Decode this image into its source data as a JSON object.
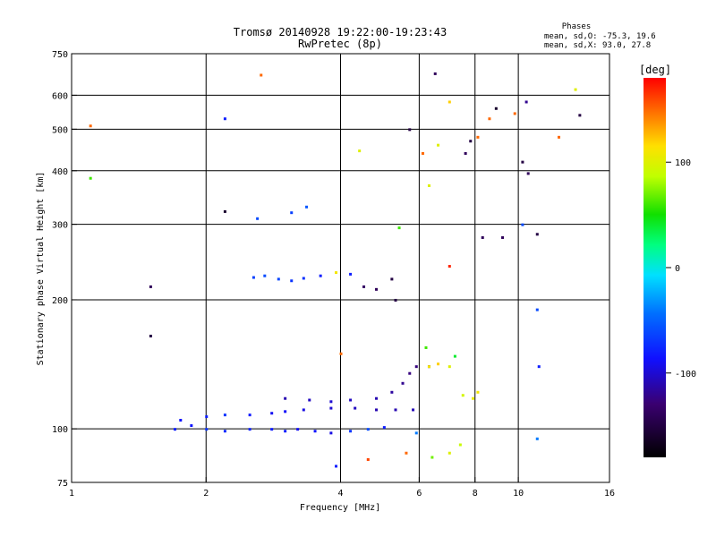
{
  "chart_data": {
    "type": "scatter",
    "title": "Tromsø 20140928 19:22:00-19:23:43",
    "subtitle": "RwPretec (8p)",
    "xlabel": "Frequency [MHz]",
    "ylabel": "Stationary phase Virtual Height [km]",
    "x_scale": "log",
    "y_scale": "log",
    "xlim": [
      1,
      16
    ],
    "ylim": [
      75,
      750
    ],
    "x_ticks": [
      1,
      2,
      4,
      6,
      8,
      10,
      16
    ],
    "x_tick_labels": [
      "1",
      "2",
      "4",
      "6",
      "8",
      "10",
      "16"
    ],
    "y_ticks": [
      75,
      100,
      200,
      300,
      400,
      500,
      600,
      750
    ],
    "y_tick_labels": [
      "75",
      "100",
      "200",
      "300",
      "400",
      "500",
      "600",
      "750"
    ],
    "x_grid": [
      2,
      4,
      6,
      8,
      10
    ],
    "y_grid": [
      100,
      200,
      300,
      400,
      500,
      600
    ],
    "stats": {
      "heading": "Phases",
      "line_o": "mean, sd,O: -75.3, 19.6",
      "line_x": "mean, sd,X:  93.0, 27.8"
    },
    "colorbar": {
      "label": "[deg]",
      "range": [
        -180,
        180
      ],
      "tick_values": [
        100,
        0,
        -100
      ],
      "tick_labels": [
        "100",
        "0",
        "-100"
      ]
    },
    "series": [
      {
        "name": "trace-lower",
        "points": [
          [
            1.7,
            100,
            -80
          ],
          [
            1.85,
            102,
            -85
          ],
          [
            2.0,
            100,
            -70
          ],
          [
            2.2,
            99,
            -75
          ],
          [
            2.5,
            100,
            -78
          ],
          [
            2.8,
            100,
            -82
          ],
          [
            3.0,
            99,
            -80
          ],
          [
            3.2,
            100,
            -90
          ],
          [
            3.5,
            99,
            -85
          ],
          [
            3.8,
            98,
            -95
          ],
          [
            4.2,
            99,
            -70
          ],
          [
            4.6,
            100,
            -60
          ],
          [
            5.0,
            101,
            -80
          ]
        ]
      },
      {
        "name": "trace-mid",
        "points": [
          [
            1.75,
            105,
            -85
          ],
          [
            2.0,
            107,
            -80
          ],
          [
            2.2,
            108,
            -70
          ],
          [
            2.5,
            108,
            -82
          ],
          [
            2.8,
            109,
            -90
          ],
          [
            3.0,
            110,
            -88
          ],
          [
            3.3,
            111,
            -95
          ],
          [
            3.8,
            112,
            -100
          ],
          [
            4.3,
            112,
            -105
          ],
          [
            4.8,
            111,
            -110
          ],
          [
            5.3,
            111,
            -110
          ],
          [
            5.8,
            111,
            -108
          ]
        ]
      },
      {
        "name": "trace-upper",
        "points": [
          [
            3.0,
            118,
            -110
          ],
          [
            3.4,
            117,
            -105
          ],
          [
            3.8,
            116,
            -100
          ],
          [
            4.2,
            117,
            -105
          ],
          [
            4.8,
            118,
            -110
          ],
          [
            5.2,
            122,
            -115
          ],
          [
            5.5,
            128,
            -120
          ],
          [
            5.7,
            135,
            -125
          ],
          [
            5.9,
            140,
            -125
          ],
          [
            6.3,
            140,
            -125
          ]
        ]
      },
      {
        "name": "trace-f-layer",
        "points": [
          [
            2.55,
            226,
            -65
          ],
          [
            2.7,
            228,
            -60
          ],
          [
            2.9,
            224,
            -62
          ],
          [
            3.1,
            222,
            -70
          ],
          [
            3.3,
            225,
            -72
          ],
          [
            3.6,
            228,
            -80
          ],
          [
            3.9,
            232,
            110
          ],
          [
            4.2,
            230,
            -80
          ],
          [
            4.5,
            215,
            -135
          ],
          [
            4.8,
            212,
            -140
          ],
          [
            5.2,
            224,
            -150
          ]
        ]
      },
      {
        "name": "trace-yellow",
        "points": [
          [
            6.3,
            140,
            110
          ],
          [
            6.6,
            142,
            120
          ],
          [
            7.0,
            140,
            100
          ],
          [
            7.5,
            120,
            95
          ],
          [
            7.9,
            118,
            105
          ],
          [
            8.1,
            122,
            110
          ],
          [
            6.2,
            155,
            60
          ],
          [
            7.2,
            148,
            40
          ],
          [
            6.4,
            86,
            70
          ],
          [
            7.0,
            88,
            100
          ],
          [
            7.4,
            92,
            90
          ]
        ]
      },
      {
        "name": "scattered",
        "points": [
          [
            1.1,
            510,
            150
          ],
          [
            1.1,
            385,
            60
          ],
          [
            1.5,
            215,
            -140
          ],
          [
            1.5,
            165,
            -150
          ],
          [
            2.2,
            530,
            -80
          ],
          [
            2.2,
            322,
            -160
          ],
          [
            2.6,
            310,
            -60
          ],
          [
            2.65,
            670,
            150
          ],
          [
            3.1,
            320,
            -65
          ],
          [
            3.35,
            330,
            -55
          ],
          [
            4.4,
            446,
            100
          ],
          [
            4.0,
            150,
            150
          ],
          [
            5.3,
            200,
            -150
          ],
          [
            5.4,
            295,
            60
          ],
          [
            5.7,
            500,
            -150
          ],
          [
            6.1,
            440,
            150
          ],
          [
            6.3,
            370,
            100
          ],
          [
            6.5,
            675,
            -140
          ],
          [
            7.0,
            580,
            120
          ],
          [
            7.0,
            240,
            170
          ],
          [
            7.8,
            470,
            -150
          ],
          [
            8.1,
            480,
            150
          ],
          [
            8.6,
            530,
            150
          ],
          [
            8.9,
            560,
            -160
          ],
          [
            9.2,
            280,
            -140
          ],
          [
            9.8,
            545,
            150
          ],
          [
            10.2,
            420,
            -150
          ],
          [
            10.4,
            580,
            -120
          ],
          [
            10.5,
            395,
            -140
          ],
          [
            11.0,
            285,
            -150
          ],
          [
            11.0,
            190,
            -60
          ],
          [
            11.1,
            140,
            -80
          ],
          [
            11.0,
            95,
            -40
          ],
          [
            12.3,
            480,
            150
          ],
          [
            13.4,
            620,
            100
          ],
          [
            13.7,
            540,
            -150
          ],
          [
            10.2,
            300,
            -60
          ],
          [
            8.3,
            280,
            -140
          ],
          [
            7.6,
            440,
            -140
          ],
          [
            6.6,
            460,
            100
          ],
          [
            5.9,
            98,
            -40
          ],
          [
            5.6,
            88,
            150
          ],
          [
            4.6,
            85,
            160
          ],
          [
            3.9,
            82,
            -80
          ]
        ]
      }
    ]
  }
}
